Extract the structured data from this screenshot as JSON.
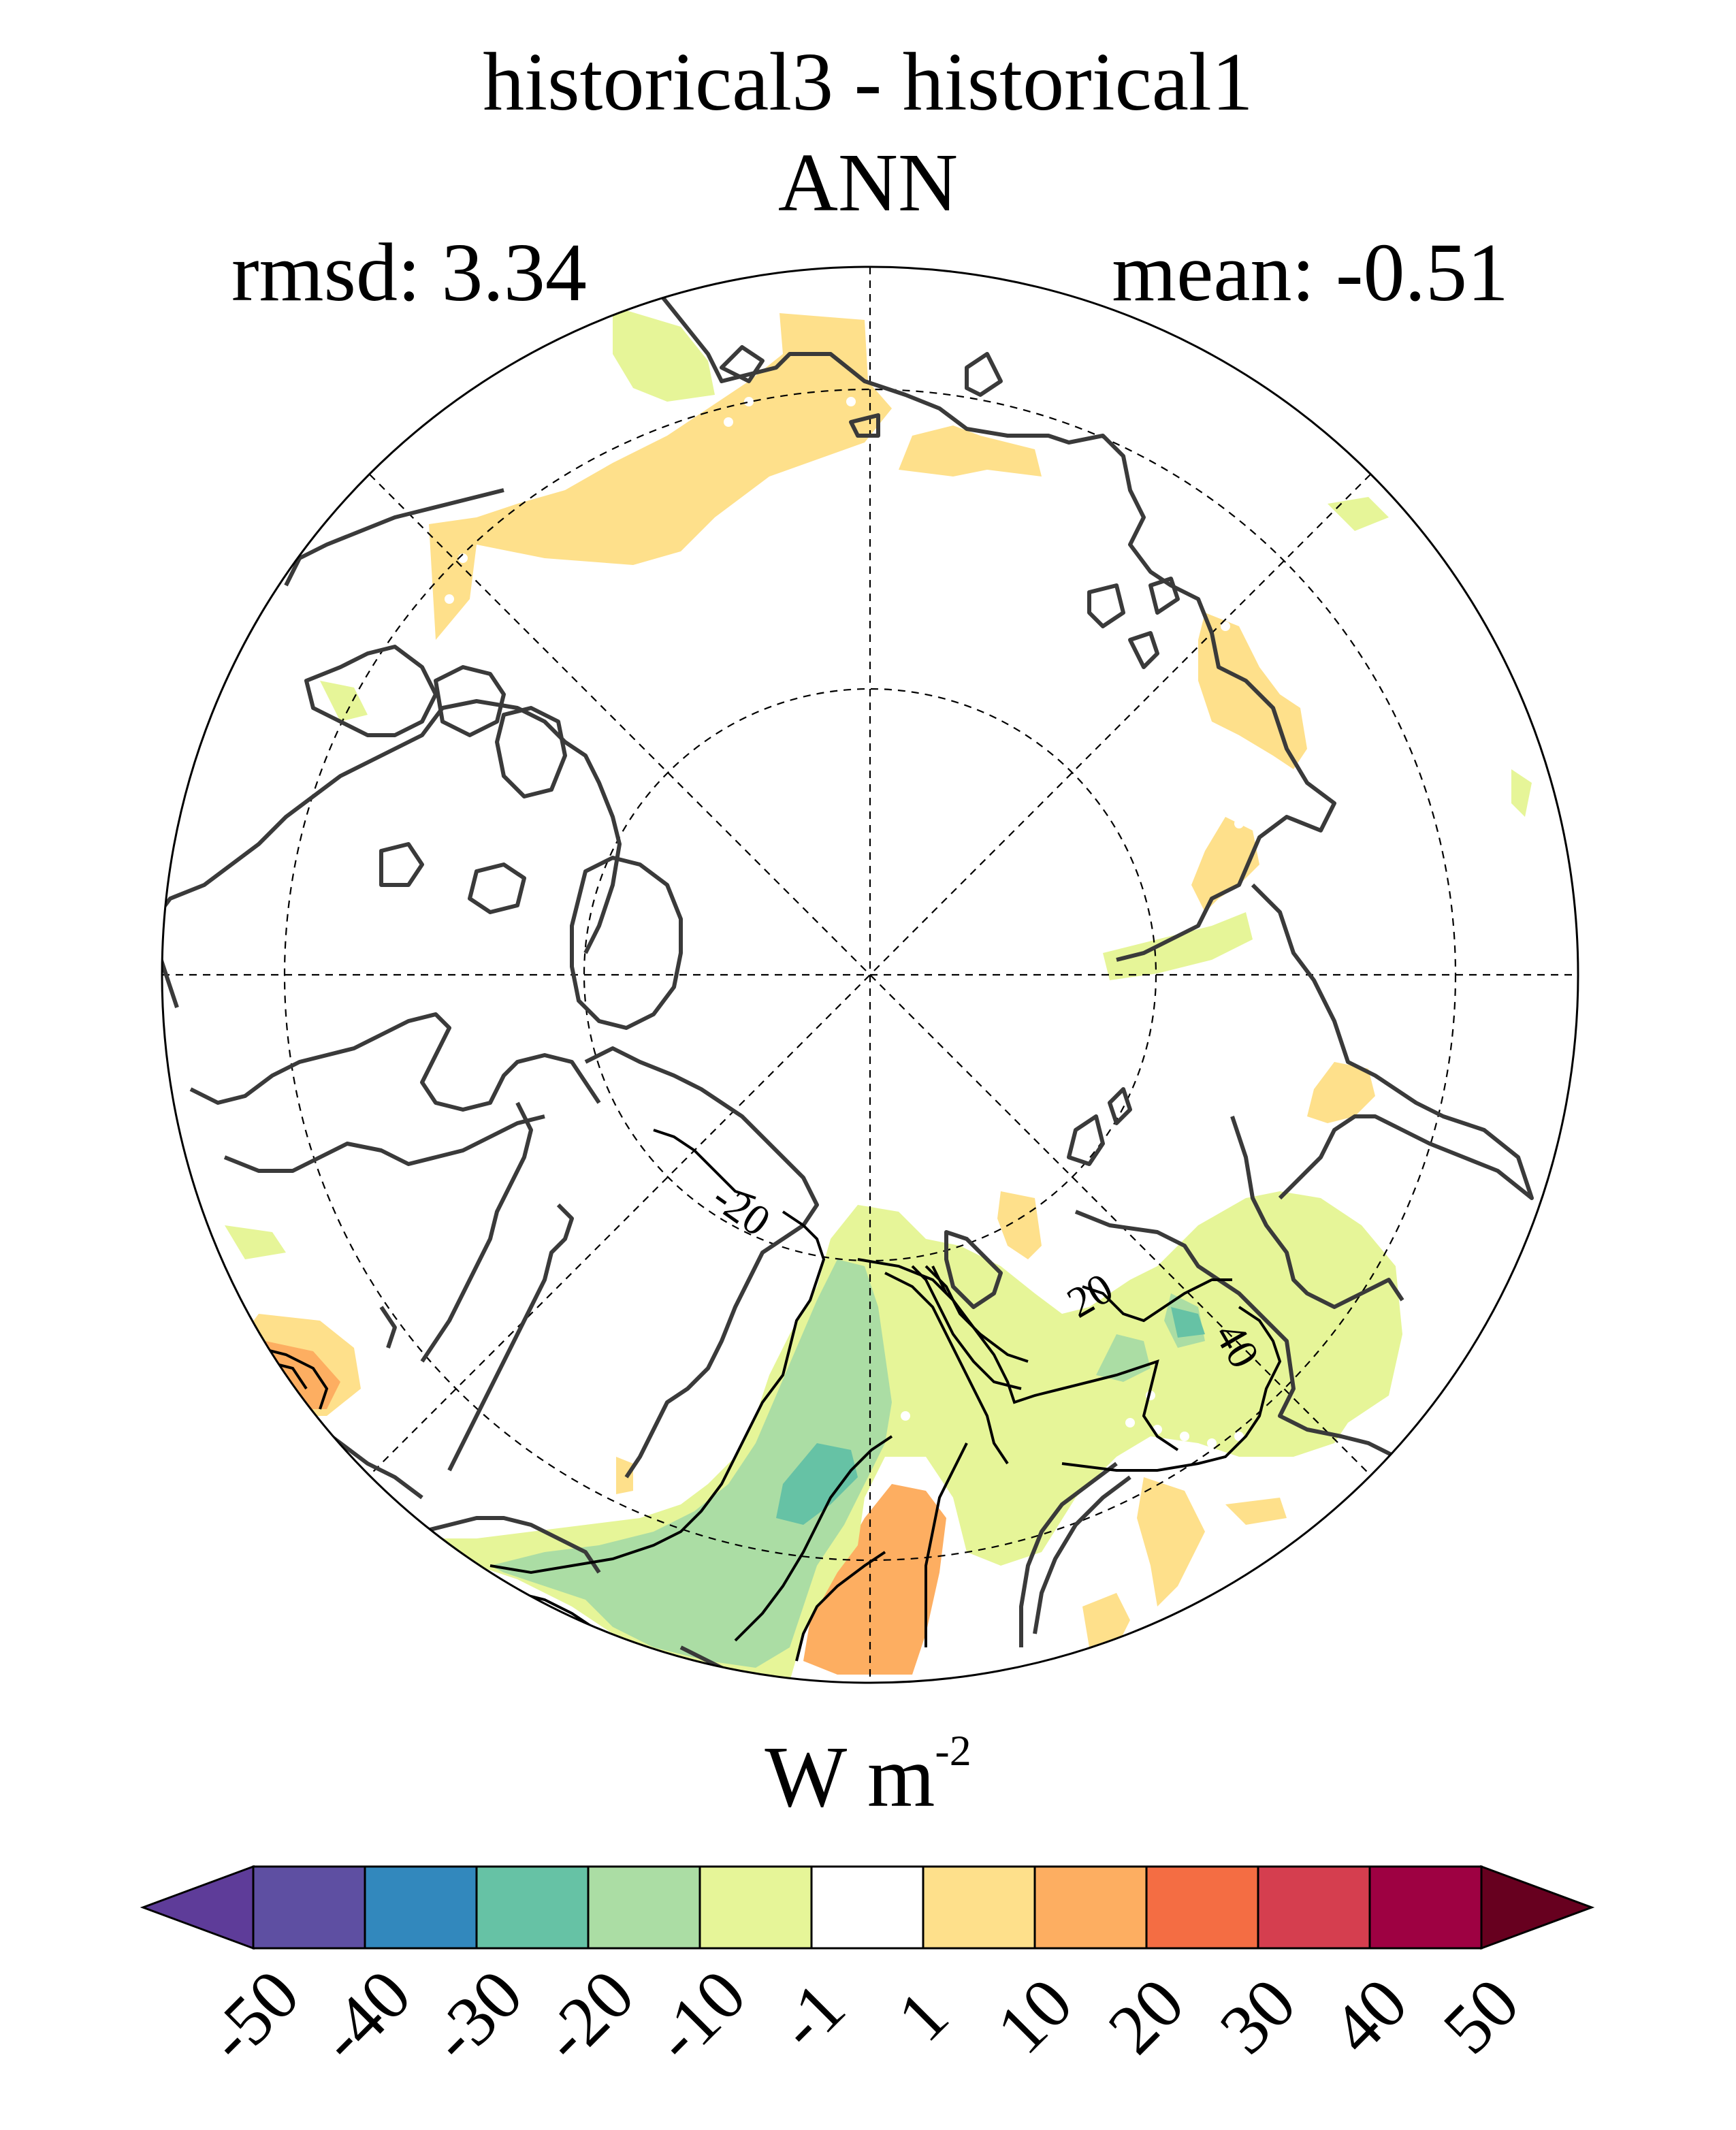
{
  "title": "historical3 - historical1",
  "subtitle": "ANN",
  "stats": {
    "rmsd_label": "rmsd: 3.34",
    "mean_label": "mean: -0.51"
  },
  "colorbar": {
    "unit_main": "W m",
    "unit_exp": "-2",
    "ticks": [
      "-50",
      "-40",
      "-30",
      "-20",
      "-10",
      "-1",
      "1",
      "10",
      "20",
      "30",
      "40",
      "50"
    ],
    "colors": [
      "#5e3c99",
      "#5e4fa2",
      "#3288bd",
      "#66c2a5",
      "#abdda4",
      "#e6f598",
      "#ffffff",
      "#fee08b",
      "#fdae61",
      "#f46d43",
      "#d53e4f",
      "#9e0142",
      "#67001f"
    ]
  },
  "contour_labels": [
    "-20",
    "20",
    "40"
  ],
  "chart_data": {
    "type": "polar-stereographic-map",
    "title": "historical3 - historical1",
    "subtitle": "ANN",
    "rmsd": 3.34,
    "mean": -0.51,
    "units": "W m^-2",
    "levels": [
      -50,
      -40,
      -30,
      -20,
      -10,
      -1,
      1,
      10,
      20,
      30,
      40,
      50
    ],
    "contour_lines": [
      -20,
      20,
      40
    ]
  }
}
